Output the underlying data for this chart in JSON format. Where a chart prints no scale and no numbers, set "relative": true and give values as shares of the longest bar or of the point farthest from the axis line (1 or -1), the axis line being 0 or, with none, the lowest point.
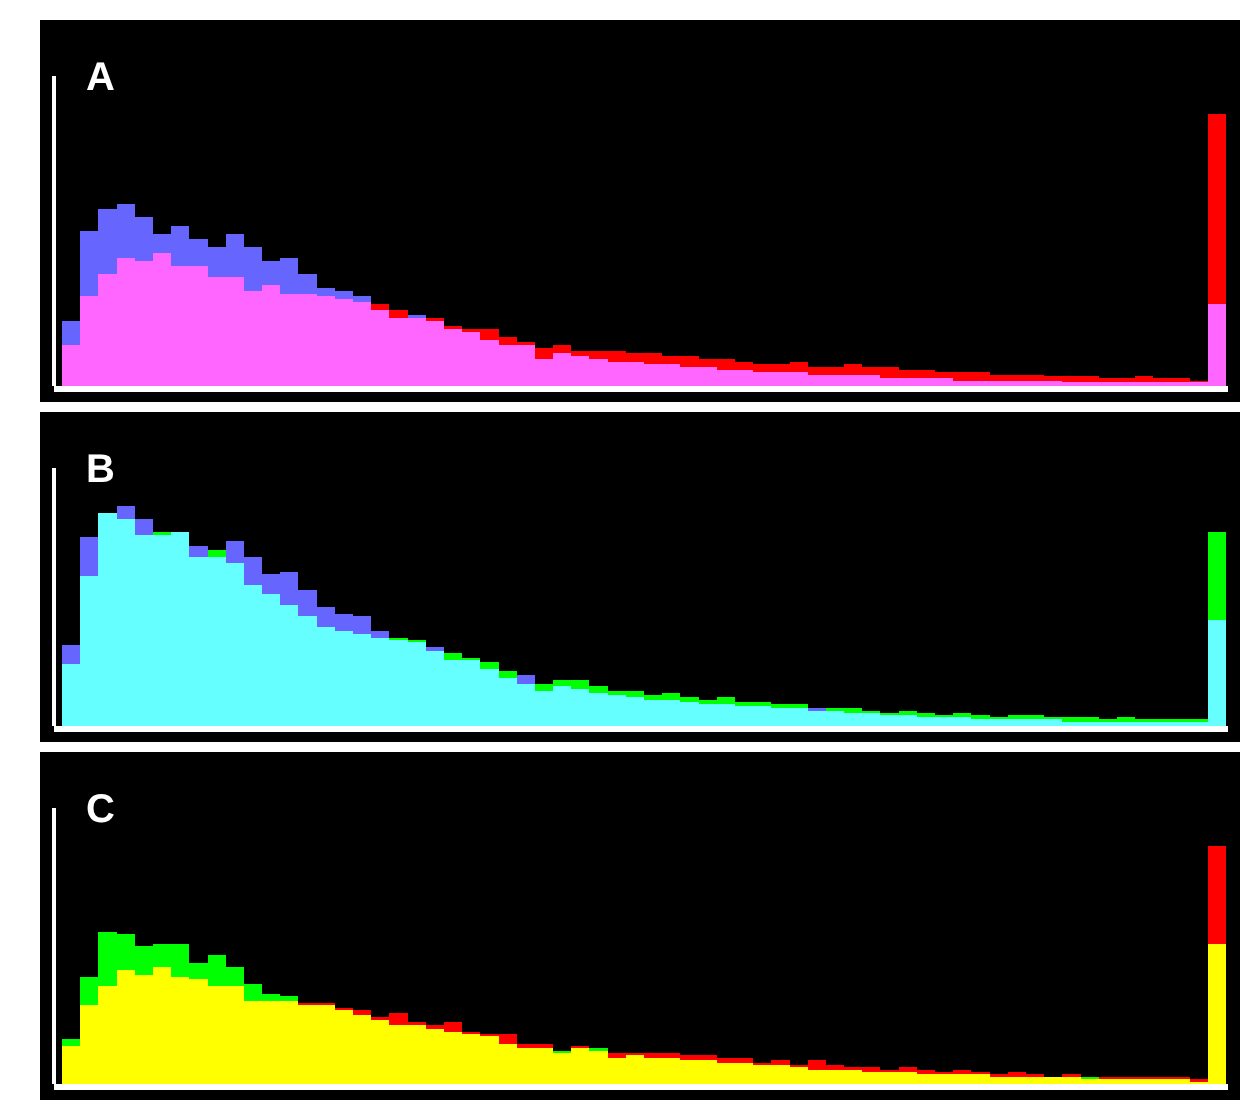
{
  "chart_data": [
    {
      "type": "bar",
      "title": "A",
      "stacked": true,
      "relative": true,
      "categories": [
        null,
        null,
        null,
        null,
        null,
        null,
        null,
        null,
        null,
        null,
        null,
        null,
        null,
        null,
        null,
        null,
        null,
        null,
        null,
        null,
        null,
        null,
        null,
        null,
        null,
        null,
        null,
        null,
        null,
        null,
        null,
        null,
        null,
        null,
        null,
        null,
        null,
        null,
        null,
        null,
        null,
        null,
        null,
        null,
        null,
        null,
        null,
        null,
        null,
        null,
        null,
        null,
        null,
        null,
        null,
        null,
        null,
        null,
        null,
        null,
        null,
        null,
        null,
        null
      ],
      "series": [
        {
          "color": "#ff66ff",
          "values": [
            0.15,
            0.33,
            0.41,
            0.47,
            0.46,
            0.49,
            0.44,
            0.44,
            0.4,
            0.4,
            0.35,
            0.37,
            0.34,
            0.34,
            0.33,
            0.32,
            0.31,
            0.28,
            0.25,
            0.25,
            0.24,
            0.21,
            0.2,
            0.17,
            0.15,
            0.15,
            0.1,
            0.12,
            0.11,
            0.1,
            0.09,
            0.09,
            0.08,
            0.08,
            0.07,
            0.07,
            0.06,
            0.06,
            0.05,
            0.05,
            0.05,
            0.04,
            0.04,
            0.04,
            0.04,
            0.03,
            0.03,
            0.03,
            0.03,
            0.02,
            0.02,
            0.02,
            0.02,
            0.02,
            0.02,
            0.015,
            0.015,
            0.015,
            0.015,
            0.015,
            0.015,
            0.015,
            0.015,
            0.3
          ]
        },
        {
          "color": "#6666ff",
          "values": [
            0.09,
            0.24,
            0.24,
            0.2,
            0.16,
            0.07,
            0.15,
            0.1,
            0.11,
            0.16,
            0.16,
            0.09,
            0.13,
            0.07,
            0.03,
            0.03,
            0.02,
            0,
            0,
            0.01,
            0,
            0,
            0,
            0,
            0,
            0,
            0,
            0,
            0,
            0,
            0,
            0,
            0,
            0,
            0,
            0,
            0,
            0,
            0,
            0,
            0,
            0,
            0,
            0,
            0,
            0,
            0,
            0,
            0,
            0,
            0,
            0,
            0,
            0,
            0,
            0,
            0,
            0,
            0,
            0,
            0,
            0,
            0,
            0
          ]
        },
        {
          "color": "#ff0000",
          "values": [
            0,
            0,
            0,
            0,
            0,
            0,
            0,
            0,
            0,
            0,
            0,
            0,
            0,
            0,
            0,
            0,
            0,
            0.02,
            0.03,
            0,
            0.01,
            0.01,
            0.01,
            0.04,
            0.03,
            0.01,
            0.04,
            0.03,
            0.02,
            0.03,
            0.04,
            0.03,
            0.04,
            0.03,
            0.04,
            0.03,
            0.04,
            0.03,
            0.03,
            0.03,
            0.04,
            0.03,
            0.03,
            0.04,
            0.03,
            0.04,
            0.03,
            0.03,
            0.02,
            0.03,
            0.03,
            0.02,
            0.02,
            0.02,
            0.015,
            0.02,
            0.02,
            0.015,
            0.015,
            0.02,
            0.015,
            0.015,
            0.005,
            0.7
          ]
        }
      ]
    },
    {
      "type": "bar",
      "title": "B",
      "stacked": true,
      "relative": true,
      "categories": [
        null,
        null,
        null,
        null,
        null,
        null,
        null,
        null,
        null,
        null,
        null,
        null,
        null,
        null,
        null,
        null,
        null,
        null,
        null,
        null,
        null,
        null,
        null,
        null,
        null,
        null,
        null,
        null,
        null,
        null,
        null,
        null,
        null,
        null,
        null,
        null,
        null,
        null,
        null,
        null,
        null,
        null,
        null,
        null,
        null,
        null,
        null,
        null,
        null,
        null,
        null,
        null,
        null,
        null,
        null,
        null,
        null,
        null,
        null,
        null,
        null,
        null,
        null,
        null
      ],
      "series": [
        {
          "color": "#66ffff",
          "values": [
            0.28,
            0.68,
            0.97,
            0.94,
            0.87,
            0.87,
            0.88,
            0.77,
            0.77,
            0.74,
            0.64,
            0.6,
            0.55,
            0.5,
            0.45,
            0.43,
            0.42,
            0.4,
            0.39,
            0.38,
            0.34,
            0.3,
            0.3,
            0.26,
            0.22,
            0.19,
            0.16,
            0.18,
            0.17,
            0.15,
            0.14,
            0.13,
            0.12,
            0.12,
            0.11,
            0.1,
            0.1,
            0.09,
            0.09,
            0.08,
            0.08,
            0.07,
            0.07,
            0.06,
            0.06,
            0.05,
            0.05,
            0.04,
            0.04,
            0.04,
            0.03,
            0.03,
            0.03,
            0.03,
            0.03,
            0.02,
            0.02,
            0.02,
            0.02,
            0.02,
            0.02,
            0.02,
            0.02,
            0.48
          ]
        },
        {
          "color": "#6666ff",
          "values": [
            0.09,
            0.18,
            0,
            0.06,
            0.07,
            0,
            0,
            0.05,
            0,
            0.1,
            0.13,
            0.09,
            0.15,
            0.12,
            0.09,
            0.08,
            0.08,
            0.03,
            0,
            0,
            0.02,
            0,
            0,
            0,
            0,
            0.04,
            0,
            0,
            0,
            0,
            0,
            0,
            0,
            0,
            0,
            0,
            0,
            0,
            0,
            0,
            0,
            0.01,
            0,
            0,
            0,
            0,
            0,
            0,
            0,
            0,
            0,
            0,
            0,
            0,
            0,
            0,
            0,
            0,
            0,
            0,
            0,
            0,
            0,
            0
          ]
        },
        {
          "color": "#00ff00",
          "values": [
            0,
            0,
            0,
            0,
            0,
            0.01,
            0,
            0,
            0.03,
            0,
            0,
            0,
            0,
            0,
            0,
            0,
            0,
            0,
            0.01,
            0.01,
            0,
            0.03,
            0.01,
            0.03,
            0.03,
            0,
            0.03,
            0.03,
            0.04,
            0.03,
            0.02,
            0.03,
            0.02,
            0.03,
            0.02,
            0.02,
            0.03,
            0.02,
            0.02,
            0.02,
            0.02,
            0,
            0.01,
            0.02,
            0.01,
            0.01,
            0.02,
            0.02,
            0.01,
            0.02,
            0.02,
            0.01,
            0.02,
            0.02,
            0.01,
            0.02,
            0.02,
            0.01,
            0.02,
            0.01,
            0.01,
            0.01,
            0.01,
            0.4
          ]
        }
      ]
    },
    {
      "type": "bar",
      "title": "C",
      "stacked": true,
      "relative": true,
      "categories": [
        null,
        null,
        null,
        null,
        null,
        null,
        null,
        null,
        null,
        null,
        null,
        null,
        null,
        null,
        null,
        null,
        null,
        null,
        null,
        null,
        null,
        null,
        null,
        null,
        null,
        null,
        null,
        null,
        null,
        null,
        null,
        null,
        null,
        null,
        null,
        null,
        null,
        null,
        null,
        null,
        null,
        null,
        null,
        null,
        null,
        null,
        null,
        null,
        null,
        null,
        null,
        null,
        null,
        null,
        null,
        null,
        null,
        null,
        null,
        null,
        null,
        null,
        null,
        null
      ],
      "series": [
        {
          "color": "#ffff00",
          "values": [
            0.16,
            0.33,
            0.41,
            0.48,
            0.46,
            0.49,
            0.45,
            0.44,
            0.41,
            0.41,
            0.35,
            0.35,
            0.35,
            0.33,
            0.33,
            0.31,
            0.29,
            0.27,
            0.25,
            0.25,
            0.23,
            0.22,
            0.21,
            0.2,
            0.17,
            0.15,
            0.15,
            0.13,
            0.15,
            0.14,
            0.11,
            0.12,
            0.11,
            0.11,
            0.1,
            0.1,
            0.09,
            0.09,
            0.08,
            0.08,
            0.07,
            0.06,
            0.06,
            0.06,
            0.05,
            0.05,
            0.05,
            0.04,
            0.04,
            0.04,
            0.04,
            0.03,
            0.03,
            0.03,
            0.03,
            0.03,
            0.02,
            0.02,
            0.02,
            0.02,
            0.02,
            0.02,
            0.01,
            0.59
          ]
        },
        {
          "color": "#00ff00",
          "values": [
            0.03,
            0.12,
            0.23,
            0.15,
            0.12,
            0.1,
            0.14,
            0.07,
            0.13,
            0.08,
            0.07,
            0.03,
            0.02,
            0,
            0,
            0,
            0,
            0,
            0,
            0,
            0,
            0,
            0,
            0,
            0,
            0,
            0,
            0.01,
            0,
            0.01,
            0,
            0,
            0,
            0,
            0,
            0,
            0,
            0,
            0,
            0,
            0,
            0,
            0,
            0,
            0,
            0,
            0,
            0,
            0,
            0,
            0,
            0,
            0,
            0,
            0,
            0,
            0.01,
            0,
            0,
            0,
            0,
            0,
            0,
            0
          ]
        },
        {
          "color": "#ff0000",
          "values": [
            0,
            0,
            0,
            0,
            0,
            0,
            0,
            0,
            0,
            0,
            0,
            0,
            0,
            0.01,
            0.01,
            0.01,
            0.02,
            0.01,
            0.05,
            0.01,
            0.02,
            0.04,
            0.01,
            0.01,
            0.04,
            0.02,
            0.02,
            0,
            0.01,
            0,
            0.02,
            0.01,
            0.02,
            0.02,
            0.02,
            0.02,
            0.02,
            0.02,
            0.01,
            0.02,
            0.01,
            0.04,
            0.02,
            0.01,
            0.02,
            0.01,
            0.02,
            0.02,
            0.01,
            0.02,
            0.01,
            0.01,
            0.02,
            0.01,
            0,
            0.01,
            0,
            0.01,
            0.01,
            0.01,
            0.01,
            0.01,
            0.01,
            0.41
          ]
        }
      ]
    }
  ]
}
